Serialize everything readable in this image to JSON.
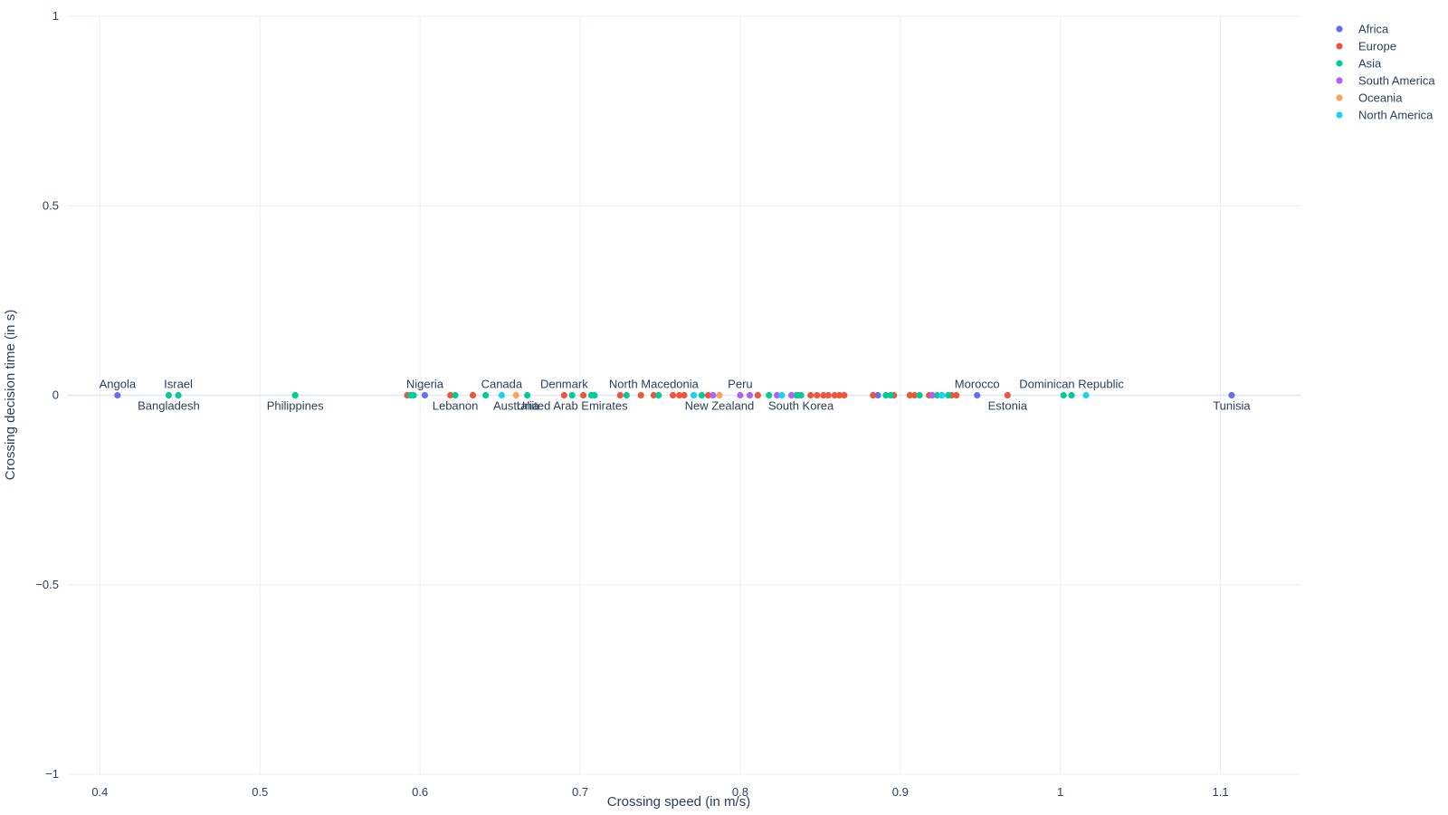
{
  "chart_data": {
    "type": "scatter",
    "xlabel": "Crossing speed (in m/s)",
    "ylabel": "Crossing decision time (in s)",
    "xlim": [
      0.38,
      1.15
    ],
    "ylim": [
      -1,
      1
    ],
    "x_ticks": [
      0.4,
      0.5,
      0.6,
      0.7,
      0.8,
      0.9,
      1.0,
      1.1
    ],
    "x_tick_labels": [
      "0.4",
      "0.5",
      "0.6",
      "0.7",
      "0.8",
      "0.9",
      "1",
      "1.1"
    ],
    "y_ticks": [
      1,
      0.5,
      0,
      -0.5,
      -1
    ],
    "y_tick_labels": [
      "1",
      "0.5",
      "0",
      "−0.5",
      "−1"
    ],
    "grid": true,
    "legend_position": "top-right",
    "colors": {
      "Africa": "#636efa",
      "Europe": "#ef553b",
      "Asia": "#00cc96",
      "South America": "#ab63fa",
      "Oceania": "#ffa15a",
      "North America": "#19d3f3"
    },
    "series": [
      {
        "name": "Africa",
        "points": [
          {
            "x": 0.411,
            "y": 0,
            "label": "Angola"
          },
          {
            "x": 0.603,
            "y": 0,
            "label": "Nigeria"
          },
          {
            "x": 0.886,
            "y": 0
          },
          {
            "x": 0.948,
            "y": 0,
            "label": "Morocco"
          },
          {
            "x": 1.107,
            "y": 0,
            "label": "Tunisia"
          }
        ]
      },
      {
        "name": "Europe",
        "points": [
          {
            "x": 0.592,
            "y": 0
          },
          {
            "x": 0.619,
            "y": 0
          },
          {
            "x": 0.633,
            "y": 0
          },
          {
            "x": 0.69,
            "y": 0,
            "label": "Denmark"
          },
          {
            "x": 0.702,
            "y": 0
          },
          {
            "x": 0.725,
            "y": 0
          },
          {
            "x": 0.738,
            "y": 0
          },
          {
            "x": 0.746,
            "y": 0,
            "label": "North Macedonia"
          },
          {
            "x": 0.758,
            "y": 0
          },
          {
            "x": 0.762,
            "y": 0
          },
          {
            "x": 0.765,
            "y": 0
          },
          {
            "x": 0.78,
            "y": 0
          },
          {
            "x": 0.811,
            "y": 0
          },
          {
            "x": 0.836,
            "y": 0
          },
          {
            "x": 0.844,
            "y": 0
          },
          {
            "x": 0.848,
            "y": 0
          },
          {
            "x": 0.852,
            "y": 0
          },
          {
            "x": 0.855,
            "y": 0
          },
          {
            "x": 0.859,
            "y": 0
          },
          {
            "x": 0.862,
            "y": 0
          },
          {
            "x": 0.865,
            "y": 0
          },
          {
            "x": 0.883,
            "y": 0
          },
          {
            "x": 0.896,
            "y": 0
          },
          {
            "x": 0.906,
            "y": 0
          },
          {
            "x": 0.909,
            "y": 0
          },
          {
            "x": 0.918,
            "y": 0
          },
          {
            "x": 0.932,
            "y": 0
          },
          {
            "x": 0.935,
            "y": 0
          },
          {
            "x": 0.967,
            "y": 0,
            "label": "Estonia"
          }
        ]
      },
      {
        "name": "Asia",
        "points": [
          {
            "x": 0.443,
            "y": 0,
            "label": "Bangladesh"
          },
          {
            "x": 0.449,
            "y": 0,
            "label": "Israel"
          },
          {
            "x": 0.522,
            "y": 0,
            "label": "Philippines"
          },
          {
            "x": 0.594,
            "y": 0
          },
          {
            "x": 0.596,
            "y": 0
          },
          {
            "x": 0.622,
            "y": 0,
            "label": "Lebanon"
          },
          {
            "x": 0.641,
            "y": 0
          },
          {
            "x": 0.667,
            "y": 0
          },
          {
            "x": 0.695,
            "y": 0,
            "label": "United Arab Emirates"
          },
          {
            "x": 0.707,
            "y": 0
          },
          {
            "x": 0.709,
            "y": 0
          },
          {
            "x": 0.729,
            "y": 0
          },
          {
            "x": 0.749,
            "y": 0
          },
          {
            "x": 0.776,
            "y": 0
          },
          {
            "x": 0.818,
            "y": 0
          },
          {
            "x": 0.835,
            "y": 0
          },
          {
            "x": 0.838,
            "y": 0,
            "label": "South Korea"
          },
          {
            "x": 0.891,
            "y": 0
          },
          {
            "x": 0.894,
            "y": 0
          },
          {
            "x": 0.912,
            "y": 0
          },
          {
            "x": 0.923,
            "y": 0
          },
          {
            "x": 0.926,
            "y": 0
          },
          {
            "x": 0.93,
            "y": 0
          },
          {
            "x": 1.002,
            "y": 0
          },
          {
            "x": 1.007,
            "y": 0,
            "label": "Dominican Republic"
          }
        ]
      },
      {
        "name": "South America",
        "points": [
          {
            "x": 0.771,
            "y": 0
          },
          {
            "x": 0.783,
            "y": 0
          },
          {
            "x": 0.8,
            "y": 0,
            "label": "Peru"
          },
          {
            "x": 0.806,
            "y": 0
          },
          {
            "x": 0.823,
            "y": 0
          },
          {
            "x": 0.832,
            "y": 0
          },
          {
            "x": 0.92,
            "y": 0
          }
        ]
      },
      {
        "name": "Oceania",
        "points": [
          {
            "x": 0.66,
            "y": 0,
            "label": "Australia"
          },
          {
            "x": 0.787,
            "y": 0,
            "label": "New Zealand"
          }
        ]
      },
      {
        "name": "North America",
        "points": [
          {
            "x": 0.651,
            "y": 0,
            "label": "Canada"
          },
          {
            "x": 0.771,
            "y": 0
          },
          {
            "x": 0.826,
            "y": 0
          },
          {
            "x": 0.926,
            "y": 0
          },
          {
            "x": 1.016,
            "y": 0
          }
        ]
      }
    ]
  }
}
